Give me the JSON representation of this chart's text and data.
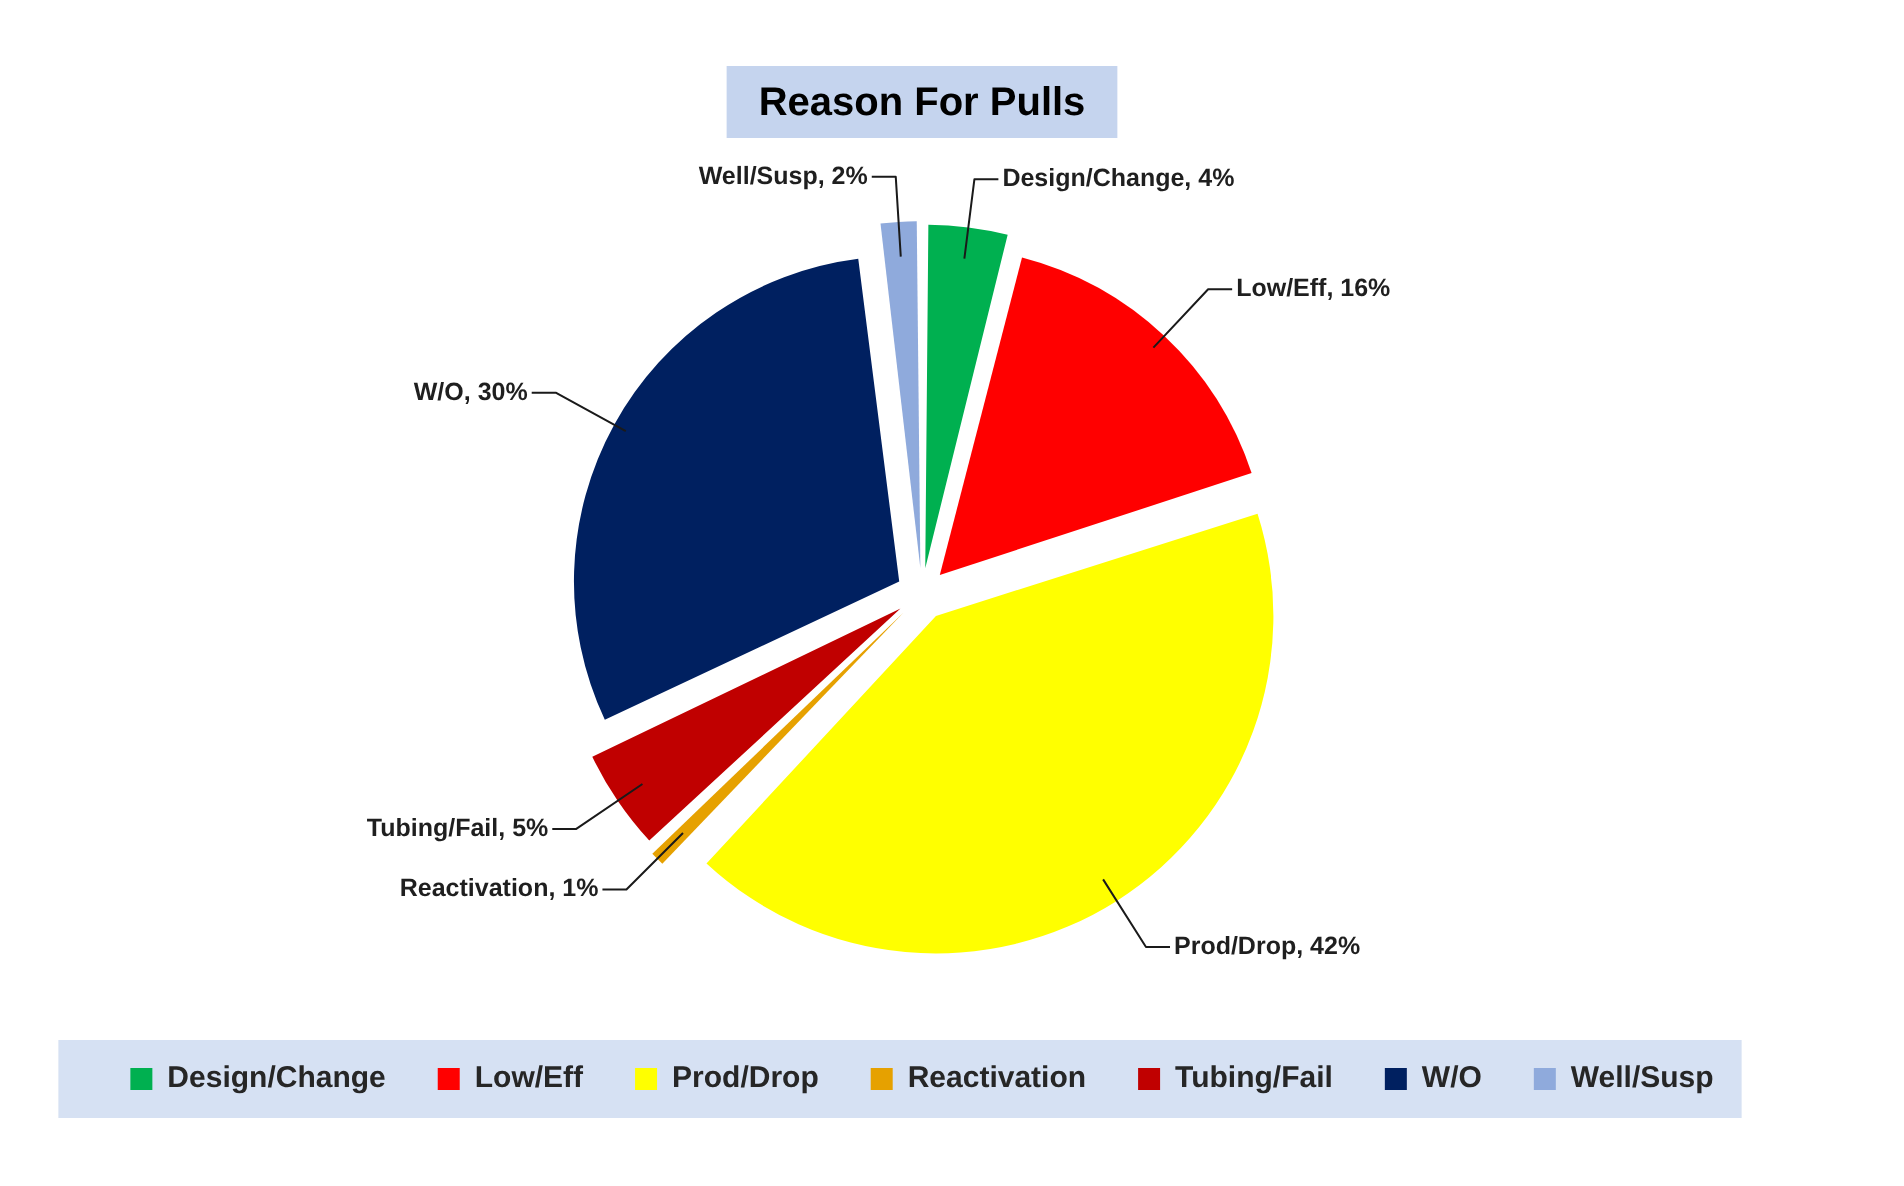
{
  "chart_data": {
    "type": "pie",
    "title": "Reason For Pulls",
    "categories": [
      "Design/Change",
      "Low/Eff",
      "Prod/Drop",
      "Reactivation",
      "Tubing/Fail",
      "W/O",
      "Well/Susp"
    ],
    "values": [
      4,
      16,
      42,
      1,
      5,
      30,
      2
    ],
    "colors": [
      "#00b050",
      "#ff0000",
      "#ffff00",
      "#e6a100",
      "#c00000",
      "#002060",
      "#8faadc"
    ],
    "value_labels": [
      "Design/Change, 4%",
      "Low/Eff, 16%",
      "Prod/Drop, 42%",
      "Reactivation, 1%",
      "Tubing/Fail, 5%",
      "W/O, 30%",
      "Well/Susp, 2%"
    ],
    "legend": "bottom"
  }
}
